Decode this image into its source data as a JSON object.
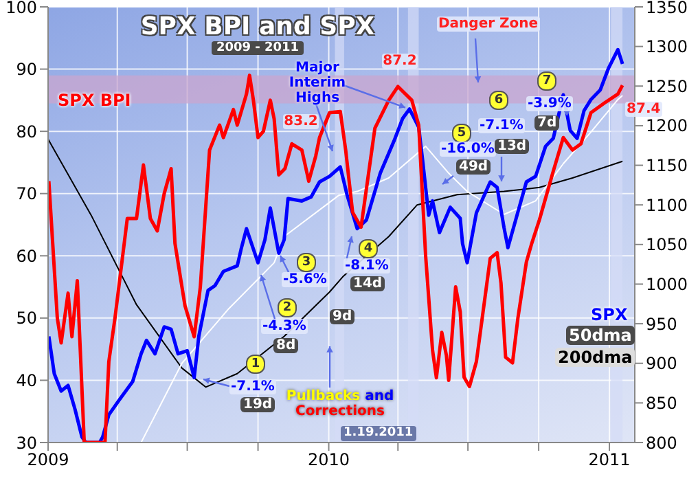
{
  "chart_data": {
    "type": "line",
    "title": "SPX BPI and SPX",
    "subtitle": "2009 - 2011",
    "xlim": [
      "2009-01-01",
      "2011-02-03"
    ],
    "xticks": [
      {
        "value": "2009-01-01",
        "label": "2009"
      },
      {
        "value": "2009-04-01",
        "label": null
      },
      {
        "value": "2009-07-01",
        "label": null
      },
      {
        "value": "2009-10-01",
        "label": null
      },
      {
        "value": "2010-01-01",
        "label": "2010"
      },
      {
        "value": "2010-04-01",
        "label": null
      },
      {
        "value": "2010-07-01",
        "label": null
      },
      {
        "value": "2010-10-01",
        "label": null
      },
      {
        "value": "2011-01-01",
        "label": "2011"
      }
    ],
    "ylim": [
      30,
      100
    ],
    "yticks": [
      30,
      40,
      50,
      60,
      70,
      80,
      90,
      100
    ],
    "y2lim": [
      800,
      1350
    ],
    "y2ticks": [
      800,
      850,
      900,
      950,
      1000,
      1050,
      1100,
      1150,
      1200,
      1250,
      1300,
      1350
    ],
    "grid": true,
    "series": [
      {
        "name": "SPX BPI",
        "color": "#ff0000",
        "x": [
          "2009-01-02",
          "2009-01-13",
          "2009-01-18",
          "2009-01-27",
          "2009-02-01",
          "2009-02-08",
          "2009-02-17",
          "2009-03-16",
          "2009-03-21",
          "2009-03-29",
          "2009-04-14",
          "2009-04-26",
          "2009-05-05",
          "2009-05-14",
          "2009-05-23",
          "2009-06-01",
          "2009-06-10",
          "2009-06-15",
          "2009-06-28",
          "2009-07-10",
          "2009-07-18",
          "2009-07-30",
          "2009-08-12",
          "2009-08-17",
          "2009-08-30",
          "2009-09-04",
          "2009-09-16",
          "2009-09-20",
          "2009-09-25",
          "2009-10-01",
          "2009-10-08",
          "2009-10-17",
          "2009-10-22",
          "2009-10-28",
          "2009-11-05",
          "2009-11-14",
          "2009-11-27",
          "2009-12-06",
          "2009-12-15",
          "2009-12-20",
          "2010-01-02",
          "2010-01-16",
          "2010-01-23",
          "2010-02-01",
          "2010-02-12",
          "2010-03-02",
          "2010-03-20",
          "2010-04-01",
          "2010-04-19",
          "2010-04-28",
          "2010-05-07",
          "2010-05-16",
          "2010-05-21",
          "2010-05-28",
          "2010-06-03",
          "2010-06-06",
          "2010-06-15",
          "2010-06-21",
          "2010-06-26",
          "2010-07-03",
          "2010-07-12",
          "2010-07-30",
          "2010-08-08",
          "2010-08-13",
          "2010-08-19",
          "2010-08-28",
          "2010-09-04",
          "2010-09-15",
          "2010-09-22",
          "2010-10-02",
          "2010-10-20",
          "2010-11-02",
          "2010-11-14",
          "2010-11-25",
          "2010-12-08",
          "2010-12-26",
          "2011-01-12",
          "2011-01-18"
        ],
        "values": [
          72,
          50,
          46,
          54,
          47,
          56,
          30,
          30,
          43,
          50,
          66,
          66,
          74.6,
          66,
          64,
          70,
          74,
          62,
          52,
          47,
          55,
          77,
          81,
          79,
          83.5,
          81,
          86,
          89,
          85,
          79,
          80,
          85,
          82,
          73,
          74,
          78,
          77,
          72,
          76,
          79,
          83,
          83.2,
          77,
          67,
          64.6,
          80.5,
          85,
          87.2,
          85,
          81,
          60,
          44.8,
          40.4,
          47.7,
          44,
          40,
          55,
          51,
          40.5,
          39,
          43,
          59.6,
          60.5,
          55.6,
          43.7,
          42.8,
          50,
          59,
          62,
          65.8,
          73.6,
          79,
          77,
          78,
          83,
          84.6,
          86,
          87.4
        ]
      },
      {
        "name": "SPX",
        "color": "#0000ff",
        "axis": "y2",
        "x": [
          "2009-01-02",
          "2009-01-09",
          "2009-01-18",
          "2009-01-27",
          "2009-02-05",
          "2009-02-14",
          "2009-02-19",
          "2009-03-09",
          "2009-03-13",
          "2009-03-21",
          "2009-04-03",
          "2009-04-21",
          "2009-05-02",
          "2009-05-09",
          "2009-05-20",
          "2009-06-01",
          "2009-06-10",
          "2009-06-19",
          "2009-07-01",
          "2009-07-10",
          "2009-07-16",
          "2009-07-28",
          "2009-08-06",
          "2009-08-17",
          "2009-09-04",
          "2009-09-09",
          "2009-09-16",
          "2009-10-01",
          "2009-10-10",
          "2009-10-17",
          "2009-10-28",
          "2009-11-04",
          "2009-11-09",
          "2009-11-27",
          "2009-12-09",
          "2009-12-20",
          "2010-01-02",
          "2010-01-16",
          "2010-01-25",
          "2010-02-07",
          "2010-02-19",
          "2010-03-09",
          "2010-03-27",
          "2010-04-07",
          "2010-04-16",
          "2010-04-28",
          "2010-05-03",
          "2010-05-11",
          "2010-05-16",
          "2010-05-25",
          "2010-06-08",
          "2010-06-21",
          "2010-06-24",
          "2010-06-30",
          "2010-07-12",
          "2010-07-30",
          "2010-08-08",
          "2010-08-17",
          "2010-08-22",
          "2010-09-15",
          "2010-09-27",
          "2010-10-10",
          "2010-10-20",
          "2010-11-02",
          "2010-11-11",
          "2010-11-20",
          "2010-11-29",
          "2010-12-08",
          "2010-12-20",
          "2010-12-31",
          "2011-01-12",
          "2011-01-18"
        ],
        "values": [
          934,
          887,
          865,
          872,
          842,
          807,
          800,
          800,
          807,
          835,
          853,
          877,
          912,
          929,
          912,
          946,
          943,
          912,
          916,
          882,
          934,
          992,
          998,
          1016,
          1023,
          1044,
          1070,
          1027,
          1056,
          1096,
          1039,
          1056,
          1108,
          1105,
          1110,
          1129,
          1136,
          1148,
          1112,
          1070,
          1081,
          1140,
          1181,
          1209,
          1221,
          1198,
          1157,
          1087,
          1105,
          1065,
          1097,
          1083,
          1051,
          1027,
          1090,
          1129,
          1122,
          1071,
          1046,
          1129,
          1136,
          1174,
          1184,
          1239,
          1194,
          1184,
          1219,
          1233,
          1245,
          1273,
          1296,
          1278
        ]
      },
      {
        "name": "50dma",
        "color": "#ffffff",
        "axis": "y2",
        "x": [
          "2009-05-02",
          "2009-06-24",
          "2009-08-24",
          "2009-10-22",
          "2009-11-04",
          "2010-01-14",
          "2010-02-07",
          "2010-03-20",
          "2010-05-07",
          "2010-06-06",
          "2010-06-30",
          "2010-08-17",
          "2010-09-27",
          "2010-11-02",
          "2010-12-08",
          "2011-01-12",
          "2011-01-18"
        ],
        "values": [
          800,
          900,
          969,
          1027,
          1060,
          1112,
          1117,
          1134,
          1174,
          1140,
          1117,
          1088,
          1105,
          1152,
          1192,
          1233,
          1238
        ]
      },
      {
        "name": "200dma",
        "color": "#000000",
        "axis": "y2",
        "x": [
          "2009-01-01",
          "2009-02-26",
          "2009-04-26",
          "2009-06-24",
          "2009-07-25",
          "2009-09-04",
          "2009-11-04",
          "2010-01-02",
          "2010-01-20",
          "2010-03-20",
          "2010-04-26",
          "2010-06-17",
          "2010-08-17",
          "2010-10-02",
          "2010-11-14",
          "2011-01-18"
        ],
        "values": [
          1183,
          1087,
          974,
          894,
          870,
          887,
          934,
          990,
          1010,
          1060,
          1100,
          1113,
          1117,
          1122,
          1134,
          1155
        ]
      }
    ],
    "bands": [
      {
        "axis": "x",
        "from": "2010-01-09",
        "to": "2010-01-21",
        "label": null,
        "color": "#d4dcf6"
      },
      {
        "axis": "x",
        "from": "2010-04-14",
        "to": "2010-04-28",
        "label": null,
        "color": "#d4dcf6"
      },
      {
        "axis": "x",
        "from": "2011-01-03",
        "to": "2011-01-18",
        "label": null,
        "color": "#d4dcf6"
      },
      {
        "axis": "y",
        "from": 84.5,
        "to": 89,
        "label": null,
        "color": "#c9a6cf"
      }
    ],
    "annotations": [
      {
        "text": "Major Interim Highs",
        "x": "2010-04-16",
        "y": 83.6
      },
      "Danger Zone",
      "Pullbacks and Corrections",
      "1.19.2011",
      "1",
      "-7.1%",
      "19d",
      "2",
      "-4.3%",
      "8d",
      "3",
      "-5.6%",
      "9d",
      "4",
      "-8.1%",
      "14d",
      "5",
      "-16.0%",
      "49d",
      "6",
      "-7.1%",
      "13d",
      "7",
      "-3.9%",
      "7d",
      {
        "text": "83.2",
        "x": "2010-01-16",
        "y": 83.2
      },
      {
        "text": "87.2",
        "x": "2010-04-01",
        "y": 87.2
      },
      {
        "text": "87.4",
        "x": "2011-01-18",
        "y": 87.4
      }
    ]
  }
}
